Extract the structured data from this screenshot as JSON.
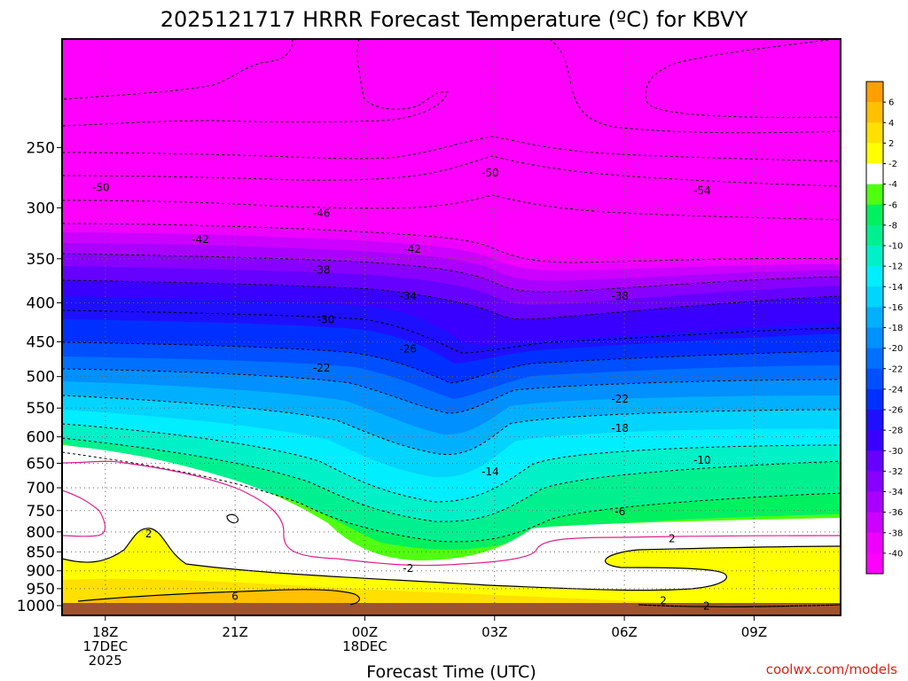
{
  "chart_data": {
    "type": "heatmap",
    "title": "2025121717 HRRR Forecast Temperature (ºC) for KBVY",
    "xlabel": "Forecast Time (UTC)",
    "ylabel": "",
    "credit": "coolwx.com/models",
    "x_axis": {
      "ticks": [
        {
          "hour": 0,
          "lines": [
            "18Z",
            "17DEC",
            "2025"
          ]
        },
        {
          "hour": 3,
          "lines": [
            "21Z"
          ]
        },
        {
          "hour": 6,
          "lines": [
            "00Z",
            "18DEC"
          ]
        },
        {
          "hour": 9,
          "lines": [
            "03Z"
          ]
        },
        {
          "hour": 12,
          "lines": [
            "06Z"
          ]
        },
        {
          "hour": 15,
          "lines": [
            "09Z"
          ]
        }
      ],
      "range_hours": [
        -1,
        17
      ]
    },
    "y_axis": {
      "unit": "hPa",
      "scale": "log",
      "ticks": [
        250,
        300,
        350,
        400,
        450,
        500,
        550,
        600,
        650,
        700,
        750,
        800,
        850,
        900,
        950,
        1000
      ],
      "range": [
        180,
        1030
      ]
    },
    "colorbar": {
      "levels": [
        -40,
        -38,
        -36,
        -34,
        -32,
        -30,
        -28,
        -26,
        -24,
        -22,
        -20,
        -18,
        -16,
        -14,
        -12,
        -10,
        -8,
        -6,
        -4,
        -2,
        2,
        4,
        6
      ],
      "colors": [
        "#ff00ff",
        "#ee00ff",
        "#cc00ff",
        "#aa00ff",
        "#8800ff",
        "#6600ff",
        "#3a00ff",
        "#1e10ff",
        "#0030ff",
        "#0050ff",
        "#0070ff",
        "#0090ff",
        "#00b0ff",
        "#00d4ff",
        "#00eeff",
        "#00f0c8",
        "#00f090",
        "#00f060",
        "#50ff10",
        "#ffffff",
        "#ffff00",
        "#ffe000",
        "#ffc000",
        "#ffa000"
      ]
    },
    "contour_labels": [
      {
        "value": -50,
        "hour": -0.1,
        "pressure": 282
      },
      {
        "value": -46,
        "hour": 5.0,
        "pressure": 305
      },
      {
        "value": -42,
        "hour": 2.2,
        "pressure": 330
      },
      {
        "value": -42,
        "hour": 7.1,
        "pressure": 340
      },
      {
        "value": -50,
        "hour": 8.9,
        "pressure": 270
      },
      {
        "value": -54,
        "hour": 13.8,
        "pressure": 285
      },
      {
        "value": -38,
        "hour": 5.0,
        "pressure": 362
      },
      {
        "value": -34,
        "hour": 7.0,
        "pressure": 392
      },
      {
        "value": -38,
        "hour": 11.9,
        "pressure": 392
      },
      {
        "value": -30,
        "hour": 5.1,
        "pressure": 421
      },
      {
        "value": -26,
        "hour": 7.0,
        "pressure": 460
      },
      {
        "value": -22,
        "hour": 5.0,
        "pressure": 487
      },
      {
        "value": -22,
        "hour": 11.9,
        "pressure": 535
      },
      {
        "value": -18,
        "hour": 11.9,
        "pressure": 585
      },
      {
        "value": -14,
        "hour": 8.9,
        "pressure": 667
      },
      {
        "value": -10,
        "hour": 13.8,
        "pressure": 644
      },
      {
        "value": -6,
        "hour": 11.9,
        "pressure": 752
      },
      {
        "value": 2,
        "hour": 13.1,
        "pressure": 817
      },
      {
        "value": 2,
        "hour": 1.0,
        "pressure": 805
      },
      {
        "value": -2,
        "hour": 7.0,
        "pressure": 893
      },
      {
        "value": 6,
        "hour": 3.0,
        "pressure": 972
      },
      {
        "value": 2,
        "hour": 12.9,
        "pressure": 986
      },
      {
        "value": 2,
        "hour": 13.9,
        "pressure": 1002
      }
    ]
  }
}
